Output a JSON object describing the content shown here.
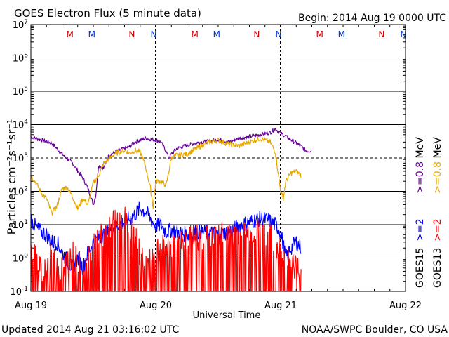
{
  "title": "GOES Electron Flux (5 minute data)",
  "begin": "Begin: 2014 Aug 19 0000 UTC",
  "updated": "Updated 2014 Aug 21 03:16:02 UTC",
  "credit": "NOAA/SWPC Boulder, CO USA",
  "colors": {
    "goes15_2mev": "#0000ff",
    "goes13_2mev": "#ff0000",
    "goes15_08mev": "#660099",
    "goes13_08mev": "#e6a800",
    "marker_m": "#cc0000",
    "marker_m_blue": "#0033cc",
    "marker_n": "#cc0000",
    "marker_n_blue": "#0033cc"
  },
  "chart_data": {
    "type": "line",
    "title": "GOES Electron Flux (5 minute data)",
    "xlabel": "Universal Time",
    "ylabel": "Particles cm⁻²s⁻¹sr⁻¹",
    "y_scale": "log",
    "ylim": [
      0.1,
      10000000
    ],
    "xlim_hours": [
      0,
      72
    ],
    "x_ticks": [
      {
        "h": 0,
        "label": "Aug 19"
      },
      {
        "h": 24,
        "label": "Aug 20"
      },
      {
        "h": 48,
        "label": "Aug 21"
      },
      {
        "h": 72,
        "label": "Aug 22"
      }
    ],
    "y_ticks": [
      {
        "base": "10",
        "exp": "7",
        "value": 10000000
      },
      {
        "base": "10",
        "exp": "6",
        "value": 1000000
      },
      {
        "base": "10",
        "exp": "5",
        "value": 100000
      },
      {
        "base": "10",
        "exp": "4",
        "value": 10000
      },
      {
        "base": "10",
        "exp": "3",
        "value": 1000
      },
      {
        "base": "10",
        "exp": "2",
        "value": 100
      },
      {
        "base": "10",
        "exp": "1",
        "value": 10
      },
      {
        "base": "10",
        "exp": "0",
        "value": 1
      },
      {
        "base": "10",
        "exp": "-1",
        "value": 0.1
      }
    ],
    "threshold_line": {
      "value": 1000,
      "style": "dashed"
    },
    "day_dividers_hours": [
      24,
      48
    ],
    "markers": [
      {
        "label": "M",
        "h": 7.5,
        "color_key": "marker_m"
      },
      {
        "label": "M",
        "h": 11.7,
        "color_key": "marker_m_blue"
      },
      {
        "label": "N",
        "h": 19.4,
        "color_key": "marker_n"
      },
      {
        "label": "N",
        "h": 23.6,
        "color_key": "marker_n_blue"
      },
      {
        "label": "M",
        "h": 31.5,
        "color_key": "marker_m"
      },
      {
        "label": "M",
        "h": 35.7,
        "color_key": "marker_m_blue"
      },
      {
        "label": "N",
        "h": 43.4,
        "color_key": "marker_n"
      },
      {
        "label": "N",
        "h": 47.6,
        "color_key": "marker_n_blue"
      },
      {
        "label": "M",
        "h": 55.5,
        "color_key": "marker_m"
      },
      {
        "label": "M",
        "h": 59.7,
        "color_key": "marker_m_blue"
      },
      {
        "label": "N",
        "h": 67.4,
        "color_key": "marker_n"
      },
      {
        "label": "N",
        "h": 71.6,
        "color_key": "marker_n_blue"
      }
    ],
    "series": [
      {
        "name": ">=0.8 MeV",
        "satellite": "GOES15",
        "color_key": "goes15_08mev",
        "points": [
          [
            0,
            4200
          ],
          [
            2,
            3500
          ],
          [
            4,
            2800
          ],
          [
            6,
            1300
          ],
          [
            8,
            700
          ],
          [
            10,
            250
          ],
          [
            11,
            120
          ],
          [
            12,
            40
          ],
          [
            12.5,
            80
          ],
          [
            13,
            600
          ],
          [
            14,
            500
          ],
          [
            15,
            1200
          ],
          [
            17,
            1700
          ],
          [
            19,
            2200
          ],
          [
            20,
            3000
          ],
          [
            22,
            3900
          ],
          [
            24,
            3500
          ],
          [
            25,
            3000
          ],
          [
            26,
            1600
          ],
          [
            26.5,
            1000
          ],
          [
            27,
            1300
          ],
          [
            28,
            1900
          ],
          [
            30,
            2400
          ],
          [
            32,
            2900
          ],
          [
            34,
            3100
          ],
          [
            36,
            3600
          ],
          [
            38,
            3000
          ],
          [
            40,
            3900
          ],
          [
            42,
            4400
          ],
          [
            44,
            5000
          ],
          [
            46,
            5800
          ],
          [
            47,
            7500
          ],
          [
            48,
            5500
          ],
          [
            50,
            3500
          ],
          [
            52,
            2200
          ],
          [
            53,
            1600
          ],
          [
            54,
            1700
          ]
        ]
      },
      {
        "name": ">=0.8 MeV",
        "satellite": "GOES13",
        "color_key": "goes13_08mev",
        "points": [
          [
            0,
            300
          ],
          [
            1,
            180
          ],
          [
            2,
            90
          ],
          [
            3,
            60
          ],
          [
            4,
            22
          ],
          [
            5,
            35
          ],
          [
            6,
            120
          ],
          [
            7,
            130
          ],
          [
            8,
            70
          ],
          [
            9,
            30
          ],
          [
            10,
            60
          ],
          [
            11,
            40
          ],
          [
            12,
            180
          ],
          [
            13,
            300
          ],
          [
            14,
            700
          ],
          [
            15,
            900
          ],
          [
            16,
            1300
          ],
          [
            17,
            1500
          ],
          [
            18,
            1700
          ],
          [
            19,
            1400
          ],
          [
            20,
            1700
          ],
          [
            21,
            1500
          ],
          [
            22,
            600
          ],
          [
            23,
            120
          ],
          [
            23.5,
            35
          ],
          [
            24,
            200
          ],
          [
            25,
            200
          ],
          [
            26,
            150
          ],
          [
            27,
            1000
          ],
          [
            28,
            1200
          ],
          [
            30,
            1300
          ],
          [
            32,
            2000
          ],
          [
            34,
            2900
          ],
          [
            36,
            3400
          ],
          [
            38,
            2600
          ],
          [
            40,
            2300
          ],
          [
            42,
            3000
          ],
          [
            44,
            3900
          ],
          [
            46,
            3000
          ],
          [
            47,
            1500
          ],
          [
            48,
            100
          ],
          [
            48.5,
            60
          ],
          [
            49,
            200
          ],
          [
            50,
            350
          ],
          [
            51,
            400
          ],
          [
            52,
            300
          ]
        ]
      },
      {
        "name": ">=2 MeV",
        "satellite": "GOES15",
        "color_key": "goes15_2mev",
        "points": [
          [
            0,
            15
          ],
          [
            1,
            8
          ],
          [
            2,
            6
          ],
          [
            3,
            5
          ],
          [
            4,
            3
          ],
          [
            5,
            3
          ],
          [
            6,
            1.5
          ],
          [
            7,
            0.8
          ],
          [
            8,
            0.5
          ],
          [
            9,
            1
          ],
          [
            10,
            0.5
          ],
          [
            11,
            1.5
          ],
          [
            12,
            3
          ],
          [
            13,
            4
          ],
          [
            14,
            5
          ],
          [
            15,
            6
          ],
          [
            16,
            8
          ],
          [
            17,
            10
          ],
          [
            18,
            12
          ],
          [
            19,
            15
          ],
          [
            20,
            20
          ],
          [
            21,
            30
          ],
          [
            22,
            25
          ],
          [
            23,
            15
          ],
          [
            24,
            9
          ],
          [
            25,
            10
          ],
          [
            26,
            6
          ],
          [
            27,
            7
          ],
          [
            28,
            6
          ],
          [
            30,
            5
          ],
          [
            32,
            6
          ],
          [
            34,
            6
          ],
          [
            36,
            5
          ],
          [
            38,
            6
          ],
          [
            40,
            9
          ],
          [
            42,
            12
          ],
          [
            44,
            15
          ],
          [
            46,
            13
          ],
          [
            47,
            10
          ],
          [
            48,
            6
          ],
          [
            49,
            1
          ],
          [
            50,
            2
          ],
          [
            51,
            3
          ],
          [
            52,
            2
          ]
        ]
      },
      {
        "name": ">=2 MeV",
        "satellite": "GOES13",
        "color_key": "goes13_2mev",
        "points": [
          [
            0,
            1.5
          ],
          [
            2,
            0.3
          ],
          [
            4,
            0.8
          ],
          [
            6,
            0.3
          ],
          [
            8,
            1
          ],
          [
            10,
            0.3
          ],
          [
            12,
            2
          ],
          [
            14,
            4
          ],
          [
            16,
            8
          ],
          [
            18,
            10
          ],
          [
            20,
            3
          ],
          [
            22,
            0.3
          ],
          [
            24,
            1
          ],
          [
            26,
            1.5
          ],
          [
            28,
            2
          ],
          [
            30,
            2.5
          ],
          [
            32,
            3
          ],
          [
            34,
            3
          ],
          [
            36,
            3.5
          ],
          [
            38,
            3
          ],
          [
            40,
            3
          ],
          [
            42,
            4
          ],
          [
            44,
            4
          ],
          [
            46,
            3
          ],
          [
            48,
            1
          ],
          [
            50,
            0.5
          ],
          [
            52,
            0.3
          ]
        ]
      }
    ],
    "legend": [
      {
        "satellite_label": "GOES15",
        "label_2": ">=2",
        "color_2_key": "goes15_2mev",
        "label_08": ">=0.8",
        "color_08_key": "goes15_08mev",
        "unit": "MeV"
      },
      {
        "satellite_label": "GOES13",
        "label_2": ">=2",
        "color_2_key": "goes13_2mev",
        "label_08": ">=0.8",
        "color_08_key": "goes13_08mev",
        "unit": "MeV"
      }
    ]
  }
}
